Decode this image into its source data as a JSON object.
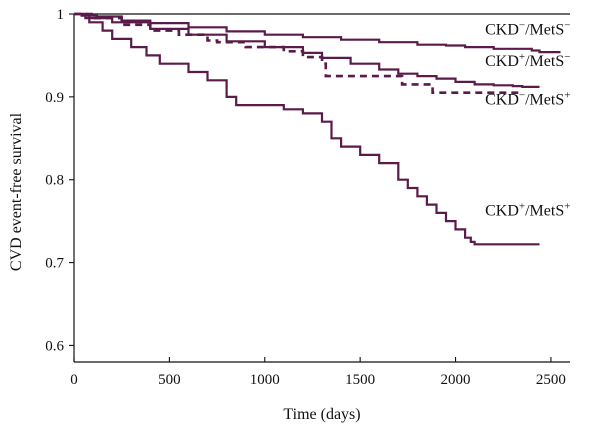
{
  "chart_data": {
    "type": "line",
    "title": "",
    "xlabel": "Time (days)",
    "ylabel": "CVD event-free survival",
    "xlim": [
      0,
      2600
    ],
    "ylim": [
      0.58,
      1.0
    ],
    "grid": false,
    "x_ticks": [
      0,
      500,
      1000,
      1500,
      2000,
      2500
    ],
    "x_tick_labels": [
      "0",
      "500",
      "1000",
      "1500",
      "2000",
      "2500"
    ],
    "y_ticks": [
      0.6,
      0.7,
      0.8,
      0.9,
      1.0
    ],
    "y_tick_labels": [
      "0.6",
      "0.7",
      "0.8",
      "0.9",
      "1"
    ],
    "step": true,
    "colors": {
      "series": "#5a1a4a",
      "axis": "#111111"
    },
    "series": [
      {
        "name": "CKD−/MetS−",
        "label": {
          "base": "CKD",
          "sup1": "−",
          "mid": "/MetS",
          "sup2": "−"
        },
        "label_at": [
          2155,
          0.975
        ],
        "dashed": false,
        "x": [
          0,
          40,
          120,
          250,
          400,
          600,
          800,
          1000,
          1200,
          1400,
          1600,
          1800,
          1950,
          2050,
          2200,
          2400,
          2440,
          2550
        ],
        "y": [
          1.0,
          0.998,
          0.997,
          0.992,
          0.989,
          0.984,
          0.979,
          0.975,
          0.972,
          0.969,
          0.966,
          0.963,
          0.962,
          0.96,
          0.958,
          0.956,
          0.954,
          0.954
        ]
      },
      {
        "name": "CKD+/MetS−",
        "label": {
          "base": "CKD",
          "sup1": "+",
          "mid": "/MetS",
          "sup2": "−"
        },
        "label_at": [
          2155,
          0.937
        ],
        "dashed": false,
        "x": [
          0,
          60,
          200,
          400,
          600,
          800,
          1000,
          1200,
          1300,
          1450,
          1600,
          1700,
          1800,
          1900,
          2000,
          2100,
          2200,
          2300,
          2350,
          2440
        ],
        "y": [
          1.0,
          0.995,
          0.99,
          0.982,
          0.975,
          0.967,
          0.96,
          0.953,
          0.947,
          0.94,
          0.933,
          0.928,
          0.925,
          0.922,
          0.918,
          0.915,
          0.914,
          0.913,
          0.912,
          0.912
        ]
      },
      {
        "name": "CKD−/MetS+",
        "label": {
          "base": "CKD",
          "sup1": "−",
          "mid": "/MetS",
          "sup2": "+"
        },
        "label_at": [
          2155,
          0.891
        ],
        "dashed": true,
        "x": [
          0,
          100,
          250,
          400,
          550,
          700,
          750,
          900,
          1100,
          1200,
          1300,
          1320,
          1700,
          1720,
          1850,
          1880,
          2000,
          2350
        ],
        "y": [
          1.0,
          0.995,
          0.987,
          0.98,
          0.975,
          0.968,
          0.966,
          0.96,
          0.955,
          0.948,
          0.94,
          0.925,
          0.925,
          0.915,
          0.915,
          0.905,
          0.905,
          0.905
        ]
      },
      {
        "name": "CKD+/MetS+",
        "label": {
          "base": "CKD",
          "sup1": "+",
          "mid": "/MetS",
          "sup2": "+"
        },
        "label_at": [
          2155,
          0.757
        ],
        "dashed": false,
        "x": [
          0,
          80,
          150,
          200,
          300,
          380,
          450,
          600,
          700,
          800,
          850,
          1000,
          1100,
          1200,
          1300,
          1350,
          1400,
          1500,
          1600,
          1700,
          1750,
          1800,
          1850,
          1900,
          1950,
          2000,
          2050,
          2080,
          2100,
          2440
        ],
        "y": [
          1.0,
          0.99,
          0.98,
          0.97,
          0.96,
          0.95,
          0.94,
          0.93,
          0.92,
          0.9,
          0.89,
          0.89,
          0.885,
          0.88,
          0.87,
          0.85,
          0.84,
          0.83,
          0.82,
          0.8,
          0.79,
          0.78,
          0.77,
          0.76,
          0.75,
          0.74,
          0.73,
          0.725,
          0.722,
          0.722
        ]
      }
    ]
  }
}
